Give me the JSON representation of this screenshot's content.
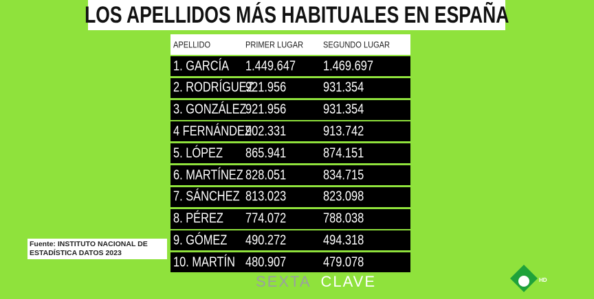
{
  "title": "LOS APELLIDOS MÁS HABITUALES EN ESPAÑA",
  "table": {
    "header": [
      "APELLIDO",
      "PRIMER LUGAR",
      "SEGUNDO LUGAR"
    ],
    "rows": [
      [
        "1. GARCÍA",
        "1.449.647",
        "1.469.697"
      ],
      [
        "2. RODRÍGUEZ",
        "921.956",
        "931.354"
      ],
      [
        "3. GONZÁLEZ",
        "921.956",
        "931.354"
      ],
      [
        "4  FERNÁNDEZ",
        "902.331",
        "913.742"
      ],
      [
        "5. LÓPEZ",
        "865.941",
        "874.151"
      ],
      [
        "6.  MARTÍNEZ",
        "828.051",
        "834.715"
      ],
      [
        "7. SÁNCHEZ",
        "813.023",
        "823.098"
      ],
      [
        "8. PÉREZ",
        "774.072",
        "788.038"
      ],
      [
        "9. GÓMEZ",
        "490.272",
        "494.318"
      ],
      [
        "10. MARTÍN",
        "480.907",
        "479.078"
      ]
    ]
  },
  "source": [
    "Fuente: INSTITUTO NACIONAL DE",
    "ESTADÍSTICA DATOS 2023"
  ],
  "logo": {
    "left": "SEXTA",
    "right": "CLAVE",
    "channel": "HD"
  }
}
